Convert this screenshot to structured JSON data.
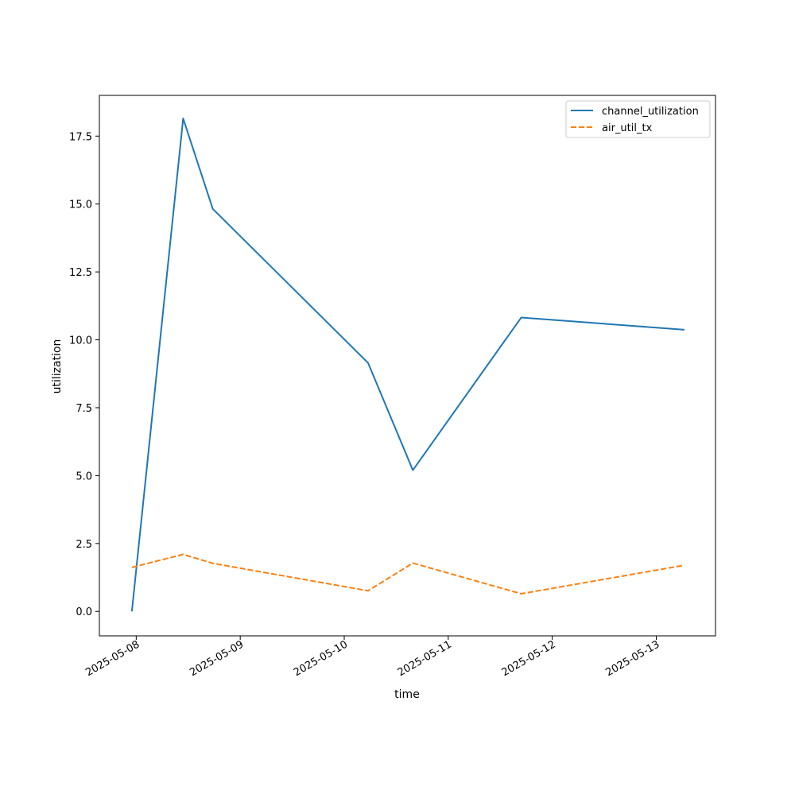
{
  "chart_data": {
    "type": "line",
    "title": "",
    "xlabel": "time",
    "ylabel": "utilization",
    "x_ticks": [
      "2025-05-08",
      "2025-05-09",
      "2025-05-10",
      "2025-05-11",
      "2025-05-12",
      "2025-05-13"
    ],
    "y_ticks": [
      "0.0",
      "2.5",
      "5.0",
      "7.5",
      "10.0",
      "12.5",
      "15.0",
      "17.5"
    ],
    "xlim": [
      "2025-05-07 15:30",
      "2025-05-13 13:40"
    ],
    "ylim": [
      -0.9,
      19.0
    ],
    "grid": false,
    "legend_position": "upper right",
    "x": [
      "2025-05-07 23:00",
      "2025-05-08 10:50",
      "2025-05-08 17:40",
      "2025-05-10 05:30",
      "2025-05-10 15:50",
      "2025-05-11 16:50",
      "2025-05-13 06:30"
    ],
    "series": [
      {
        "name": "channel_utilization",
        "values": [
          0.0,
          18.15,
          14.82,
          9.15,
          5.2,
          10.82,
          10.37
        ],
        "color": "#1f77b4",
        "line_style": "solid"
      },
      {
        "name": "air_util_tx",
        "values": [
          1.62,
          2.1,
          1.77,
          0.76,
          1.78,
          0.65,
          1.7
        ],
        "color": "#ff7f0e",
        "line_style": "dashed"
      }
    ]
  }
}
